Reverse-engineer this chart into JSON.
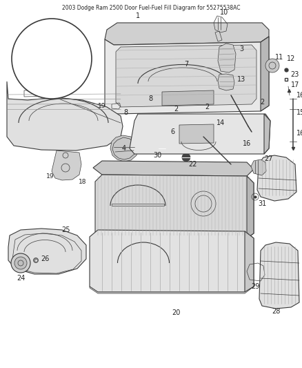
{
  "title": "2003 Dodge Ram 2500 Door Fuel-Fuel Fill Diagram for 55275538AC",
  "title_fontsize": 6.5,
  "title_color": "#222222",
  "background_color": "#ffffff",
  "line_color": "#3a3a3a",
  "label_fontsize": 7,
  "figsize": [
    4.38,
    5.33
  ],
  "dpi": 100
}
